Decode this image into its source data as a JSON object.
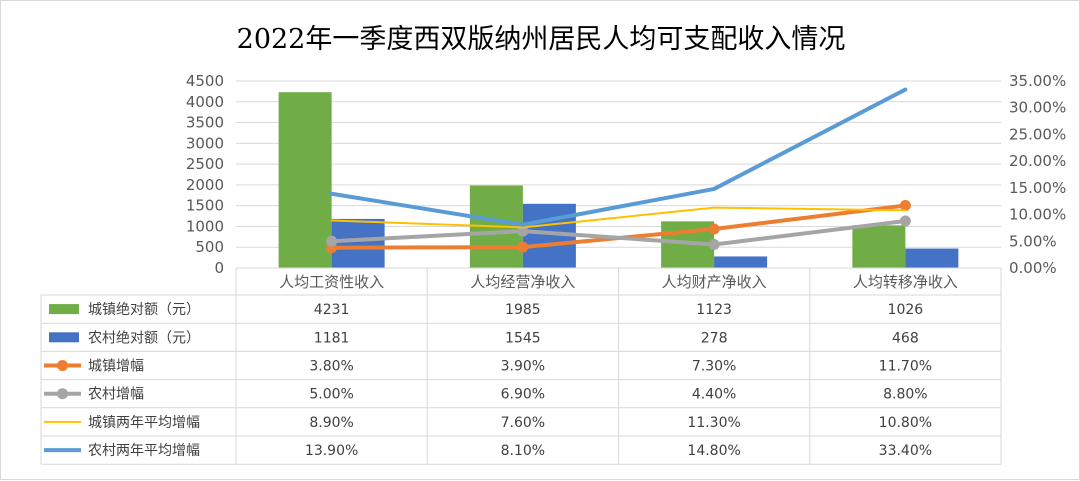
{
  "chart_data": {
    "type": "bar",
    "title": "2022年一季度西双版纳州居民人均可支配收入情况",
    "categories": [
      "人均工资性收入",
      "人均经营净收入",
      "人均财产净收入",
      "人均转移净收入"
    ],
    "y_left": {
      "ticks": [
        "0",
        "500",
        "1000",
        "1500",
        "2000",
        "2500",
        "3000",
        "3500",
        "4000",
        "4500"
      ],
      "ylim": [
        0,
        4500
      ]
    },
    "y_right": {
      "ticks": [
        "0.00%",
        "5.00%",
        "10.00%",
        "15.00%",
        "20.00%",
        "25.00%",
        "30.00%",
        "35.00%"
      ],
      "ylim": [
        0,
        0.35
      ]
    },
    "grid": true,
    "series": [
      {
        "name": "城镇绝对额（元）",
        "kind": "bar",
        "axis": "left",
        "color": "#70AD47",
        "values": [
          4231,
          1985,
          1123,
          1026
        ],
        "labels": [
          "4231",
          "1985",
          "1123",
          "1026"
        ]
      },
      {
        "name": "农村绝对额（元）",
        "kind": "bar",
        "axis": "left",
        "color": "#4472C4",
        "values": [
          1181,
          1545,
          278,
          468
        ],
        "labels": [
          "1181",
          "1545",
          "278",
          "468"
        ]
      },
      {
        "name": "城镇增幅",
        "kind": "line-marker",
        "axis": "right",
        "color": "#ED7D31",
        "values": [
          0.038,
          0.039,
          0.073,
          0.117
        ],
        "labels": [
          "3.80%",
          "3.90%",
          "7.30%",
          "11.70%"
        ]
      },
      {
        "name": "农村增幅",
        "kind": "line-marker",
        "axis": "right",
        "color": "#A5A5A5",
        "values": [
          0.05,
          0.069,
          0.044,
          0.088
        ],
        "labels": [
          "5.00%",
          "6.90%",
          "4.40%",
          "8.80%"
        ]
      },
      {
        "name": "城镇两年平均增幅",
        "kind": "line-thin",
        "axis": "right",
        "color": "#FFC000",
        "values": [
          0.089,
          0.076,
          0.113,
          0.108
        ],
        "labels": [
          "8.90%",
          "7.60%",
          "11.30%",
          "10.80%"
        ]
      },
      {
        "name": "农村两年平均增幅",
        "kind": "line-thick",
        "axis": "right",
        "color": "#5B9BD5",
        "values": [
          0.139,
          0.081,
          0.148,
          0.334
        ],
        "labels": [
          "13.90%",
          "8.10%",
          "14.80%",
          "33.40%"
        ]
      }
    ]
  }
}
